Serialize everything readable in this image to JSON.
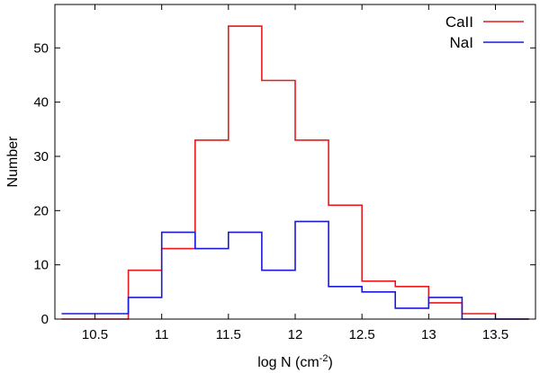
{
  "chart_data": {
    "type": "line",
    "subtype": "step-histogram",
    "xlabel_main": "log N (cm",
    "xlabel_sup": "-2",
    "xlabel_close": ")",
    "ylabel": "Number",
    "xlim": [
      10.2,
      13.8
    ],
    "ylim": [
      0,
      58
    ],
    "x_ticks": [
      10.5,
      11,
      11.5,
      12,
      12.5,
      13,
      13.5
    ],
    "x_tick_labels": [
      "10.5",
      "11",
      "11.5",
      "12",
      "12.5",
      "13",
      "13.5"
    ],
    "y_ticks": [
      0,
      10,
      20,
      30,
      40,
      50
    ],
    "y_tick_labels": [
      "0",
      "10",
      "20",
      "30",
      "40",
      "50"
    ],
    "grid": false,
    "legend_position": "top-right",
    "bin_edges": [
      10.25,
      10.5,
      10.75,
      11.0,
      11.25,
      11.5,
      11.75,
      12.0,
      12.25,
      12.5,
      12.75,
      13.0,
      13.25,
      13.5,
      13.75
    ],
    "series": [
      {
        "name": "CaII",
        "color": "#e8191c",
        "values": [
          0,
          0,
          9,
          13,
          33,
          54,
          44,
          33,
          21,
          7,
          6,
          3,
          1,
          0
        ]
      },
      {
        "name": "NaI",
        "color": "#1a1ad6",
        "values": [
          1,
          1,
          4,
          16,
          13,
          16,
          9,
          18,
          6,
          5,
          2,
          4,
          0,
          0
        ]
      }
    ]
  }
}
